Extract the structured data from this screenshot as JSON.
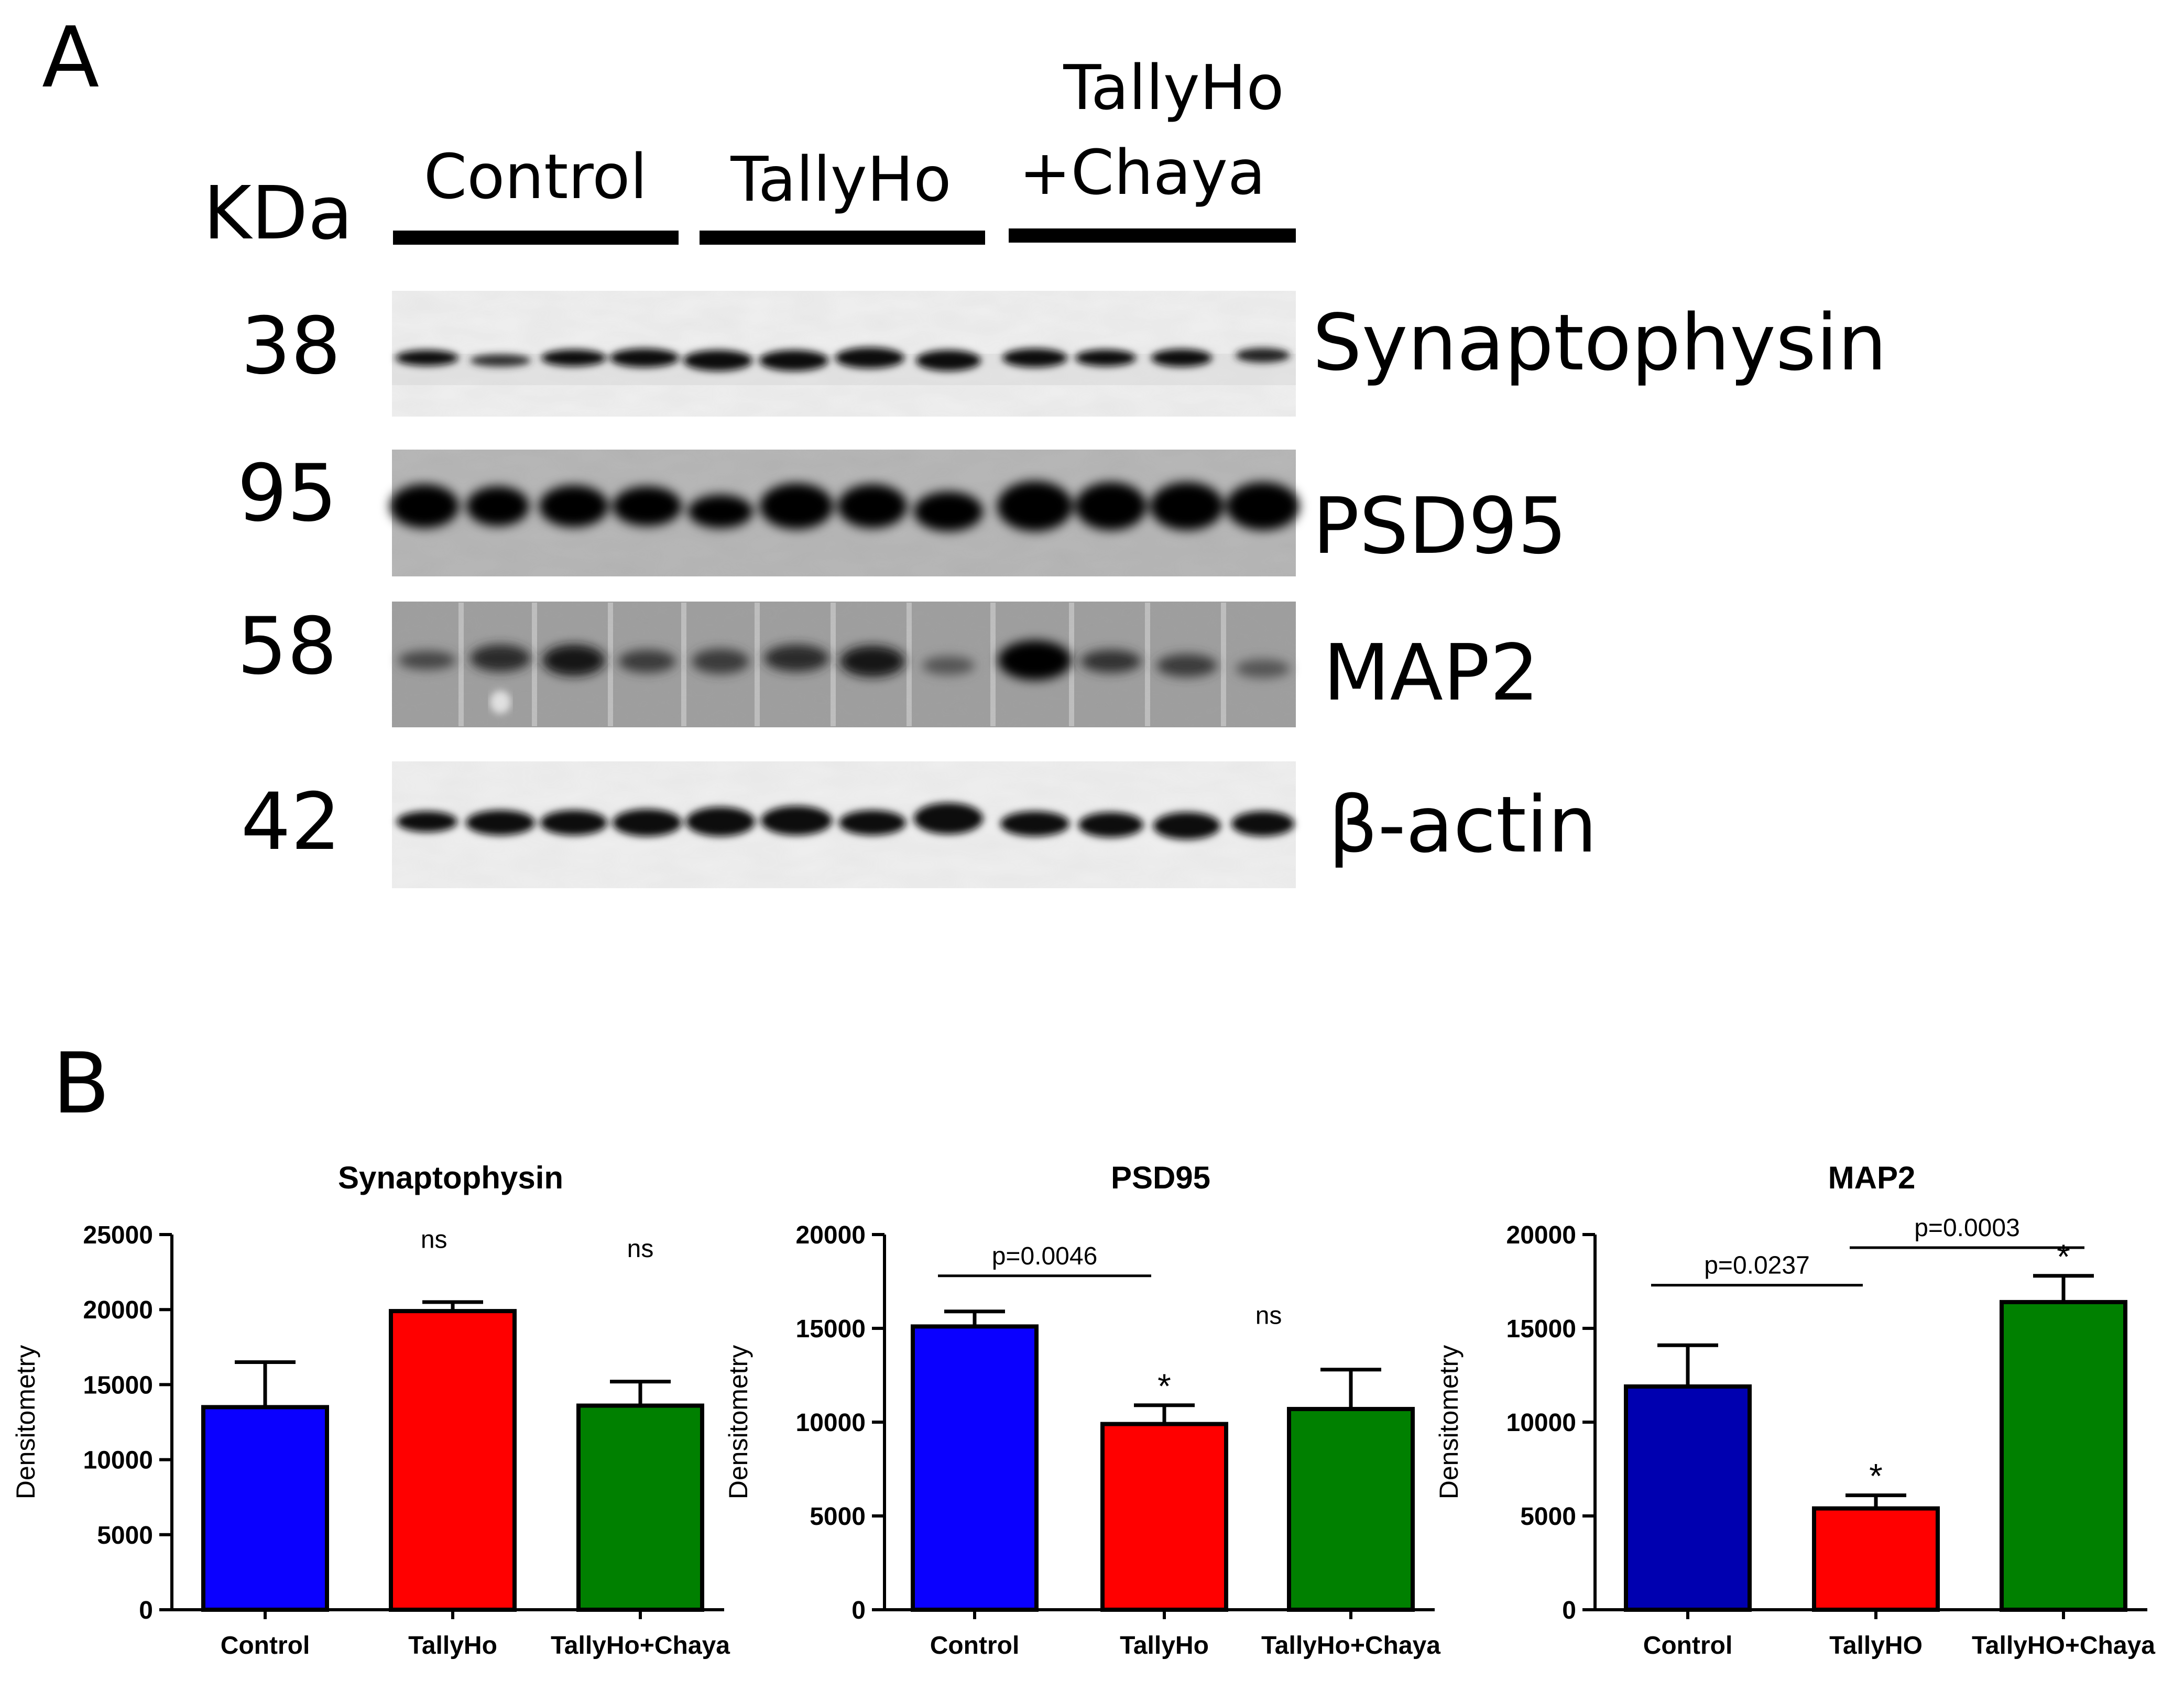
{
  "panel_a": {
    "label": "A",
    "kda_label": "KDa",
    "groups": [
      "Control",
      "TallyHo",
      "TallyHo",
      "+Chaya"
    ],
    "blots": [
      {
        "kda": "38",
        "protein": "Synaptophysin"
      },
      {
        "kda": "95",
        "protein": "PSD95"
      },
      {
        "kda": "58",
        "protein": "MAP2"
      },
      {
        "kda": "42",
        "protein": "β-actin"
      }
    ]
  },
  "panel_b": {
    "label": "B"
  },
  "colors": {
    "blue": "#0a00ff",
    "red": "#ff0000",
    "green": "#008000",
    "navy": "#0000b0"
  },
  "chart_data": [
    {
      "type": "bar",
      "title": "Synaptophysin",
      "ylabel": "Densitometry",
      "ylim": [
        0,
        25000
      ],
      "yticks": [
        "0",
        "5000",
        "10000",
        "15000",
        "20000",
        "25000"
      ],
      "categories": [
        "Control",
        "TallyHo",
        "TallyHo+Chaya"
      ],
      "values": [
        13500,
        19900,
        13600
      ],
      "errors": [
        3000,
        600,
        1600
      ],
      "bar_colors": [
        "#0a00ff",
        "#ff0000",
        "#008000"
      ],
      "annotations": [
        {
          "text": "ns",
          "x_category": 0.9,
          "y_value": 24800
        },
        {
          "text": "ns",
          "x_category": 2.0,
          "y_value": 24200
        }
      ],
      "stars": []
    },
    {
      "type": "bar",
      "title": "PSD95",
      "ylabel": "Densitometry",
      "ylim": [
        0,
        20000
      ],
      "yticks": [
        "0",
        "5000",
        "10000",
        "15000",
        "20000"
      ],
      "categories": [
        "Control",
        "TallyHo",
        "TallyHo+Chaya"
      ],
      "values": [
        15100,
        9900,
        10700
      ],
      "errors": [
        800,
        1000,
        2100
      ],
      "bar_colors": [
        "#0a00ff",
        "#ff0000",
        "#008000"
      ],
      "brackets": [
        {
          "text": "p=0.0046",
          "from": 0,
          "to": 1,
          "y_value": 17800
        }
      ],
      "annotations": [
        {
          "text": "ns",
          "x_category": 1.55,
          "y_value": 15800
        }
      ],
      "stars": [
        {
          "text": "*",
          "category": 1
        }
      ]
    },
    {
      "type": "bar",
      "title": "MAP2",
      "ylabel": "Densitometry",
      "ylim": [
        0,
        20000
      ],
      "yticks": [
        "0",
        "5000",
        "10000",
        "15000",
        "20000"
      ],
      "categories": [
        "Control",
        "TallyHO",
        "TallyHO+Chaya"
      ],
      "values": [
        11900,
        5400,
        16400
      ],
      "errors": [
        2200,
        700,
        1400
      ],
      "bar_colors": [
        "#0000b0",
        "#ff0000",
        "#008000"
      ],
      "brackets": [
        {
          "text": "p=0.0237",
          "from": 0,
          "to": 1,
          "y_value": 17300
        },
        {
          "text": "p=0.0003",
          "from": 1,
          "to": 2,
          "y_value": 19300
        }
      ],
      "annotations": [],
      "stars": [
        {
          "text": "*",
          "category": 1
        },
        {
          "text": "*",
          "category": 2
        }
      ]
    }
  ]
}
